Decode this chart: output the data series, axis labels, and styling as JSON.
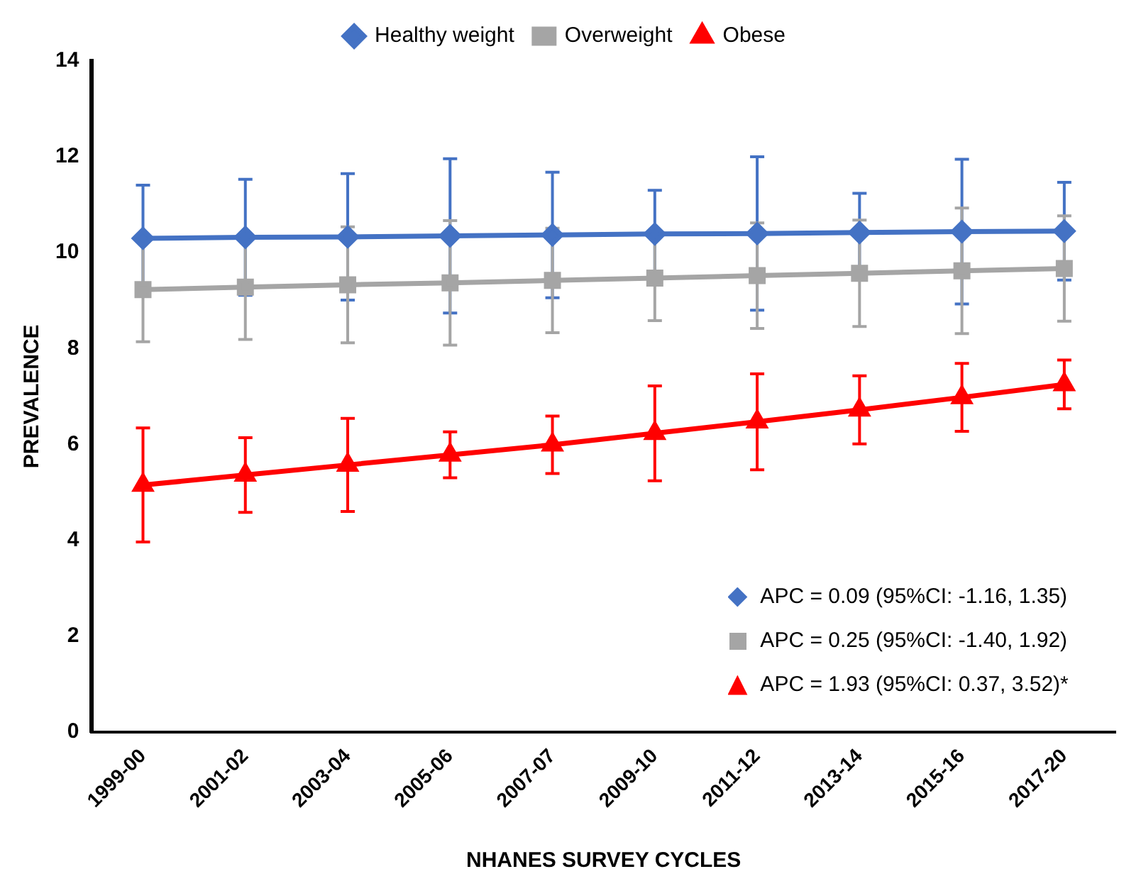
{
  "chart_data": {
    "type": "line",
    "xlabel": "NHANES SURVEY CYCLES",
    "ylabel": "PREVALENCE",
    "categories": [
      "1999-00",
      "2001-02",
      "2003-04",
      "2005-06",
      "2007-07",
      "2009-10",
      "2011-12",
      "2013-14",
      "2015-16",
      "2017-20"
    ],
    "series": [
      {
        "name": "Healthy weight",
        "color": "#4472c4",
        "marker": "diamond",
        "values": [
          10.3,
          10.32,
          10.33,
          10.35,
          10.37,
          10.39,
          10.4,
          10.42,
          10.44,
          10.45
        ],
        "errors": [
          1.11,
          1.21,
          1.32,
          1.61,
          1.31,
          0.91,
          1.6,
          0.82,
          1.51,
          1.02
        ]
      },
      {
        "name": "Overweight",
        "color": "#a5a5a5",
        "marker": "square",
        "values": [
          9.23,
          9.28,
          9.33,
          9.37,
          9.42,
          9.47,
          9.52,
          9.57,
          9.62,
          9.67
        ],
        "errors": [
          1.09,
          1.09,
          1.21,
          1.3,
          1.09,
          0.89,
          1.1,
          1.11,
          1.31,
          1.1
        ]
      },
      {
        "name": "Obese",
        "color": "#ff0000",
        "marker": "triangle",
        "values": [
          5.15,
          5.36,
          5.57,
          5.78,
          5.99,
          6.23,
          6.47,
          6.72,
          6.98,
          7.25
        ],
        "errors": [
          1.19,
          0.78,
          0.97,
          0.48,
          0.6,
          0.99,
          1.0,
          0.71,
          0.71,
          0.51
        ]
      }
    ],
    "ylim": [
      0,
      14
    ],
    "yticks": [
      0,
      2,
      4,
      6,
      8,
      10,
      12,
      14
    ],
    "grid": false,
    "legend": "top",
    "line_style": "solid",
    "annotations": [
      "APC = 0.09 (95%CI: -1.16, 1.35)",
      "APC = 0.25 (95%CI: -1.40, 1.92)",
      "APC = 1.93 (95%CI: 0.37, 3.52)*"
    ]
  }
}
